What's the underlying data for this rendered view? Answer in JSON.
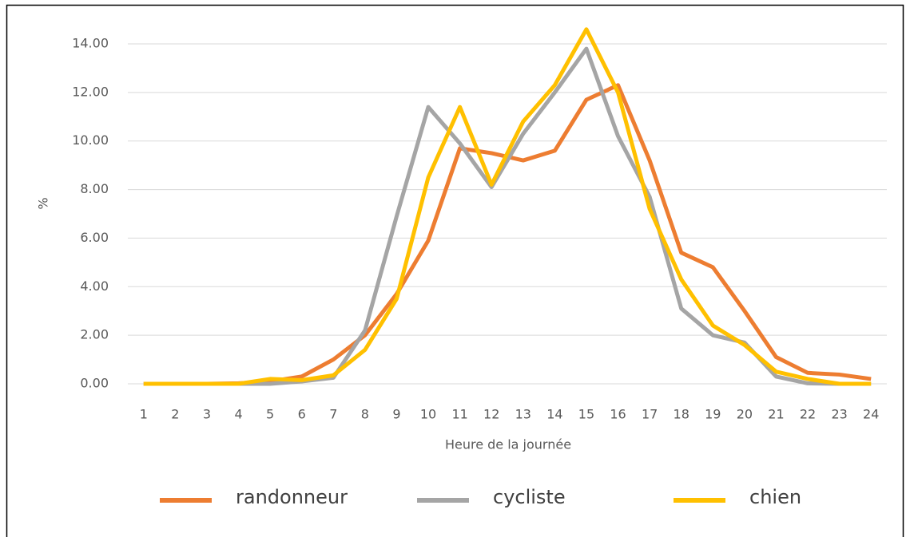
{
  "chart_data": {
    "type": "line",
    "x_label": "Heure de la journée",
    "y_label": "%",
    "categories": [
      "1",
      "2",
      "3",
      "4",
      "5",
      "6",
      "7",
      "8",
      "9",
      "10",
      "11",
      "12",
      "13",
      "14",
      "15",
      "16",
      "17",
      "18",
      "19",
      "20",
      "21",
      "22",
      "23",
      "24"
    ],
    "series": [
      {
        "name": "randonneur",
        "color": "#ED7D31",
        "values": [
          0,
          0,
          0,
          0.02,
          0.1,
          0.3,
          1.0,
          2.0,
          3.7,
          5.9,
          9.7,
          9.5,
          9.2,
          9.6,
          11.7,
          12.3,
          9.2,
          5.4,
          4.8,
          3.0,
          1.1,
          0.45,
          0.38,
          0.2
        ]
      },
      {
        "name": "cycliste",
        "color": "#A5A5A5",
        "values": [
          0,
          0,
          0,
          0,
          0,
          0.1,
          0.25,
          2.2,
          6.9,
          11.4,
          9.9,
          8.1,
          10.3,
          12.0,
          13.8,
          10.2,
          7.7,
          3.1,
          2.0,
          1.7,
          0.3,
          0.02,
          0,
          0
        ]
      },
      {
        "name": "chien",
        "color": "#FFC000",
        "values": [
          0,
          0,
          0,
          0,
          0.2,
          0.15,
          0.35,
          1.4,
          3.5,
          8.5,
          11.4,
          8.2,
          10.8,
          12.3,
          14.6,
          12.0,
          7.2,
          4.3,
          2.4,
          1.6,
          0.5,
          0.2,
          0,
          0
        ]
      }
    ],
    "ylim": [
      0,
      14
    ],
    "yticks": [
      {
        "value": 0,
        "label": "0.00"
      },
      {
        "value": 2,
        "label": "2.00"
      },
      {
        "value": 4,
        "label": "4.00"
      },
      {
        "value": 6,
        "label": "6.00"
      },
      {
        "value": 8,
        "label": "8.00"
      },
      {
        "value": 10,
        "label": "10.00"
      },
      {
        "value": 12,
        "label": "12.00"
      },
      {
        "value": 14,
        "label": "14.00"
      }
    ],
    "grid": true,
    "legend": "bottom"
  }
}
